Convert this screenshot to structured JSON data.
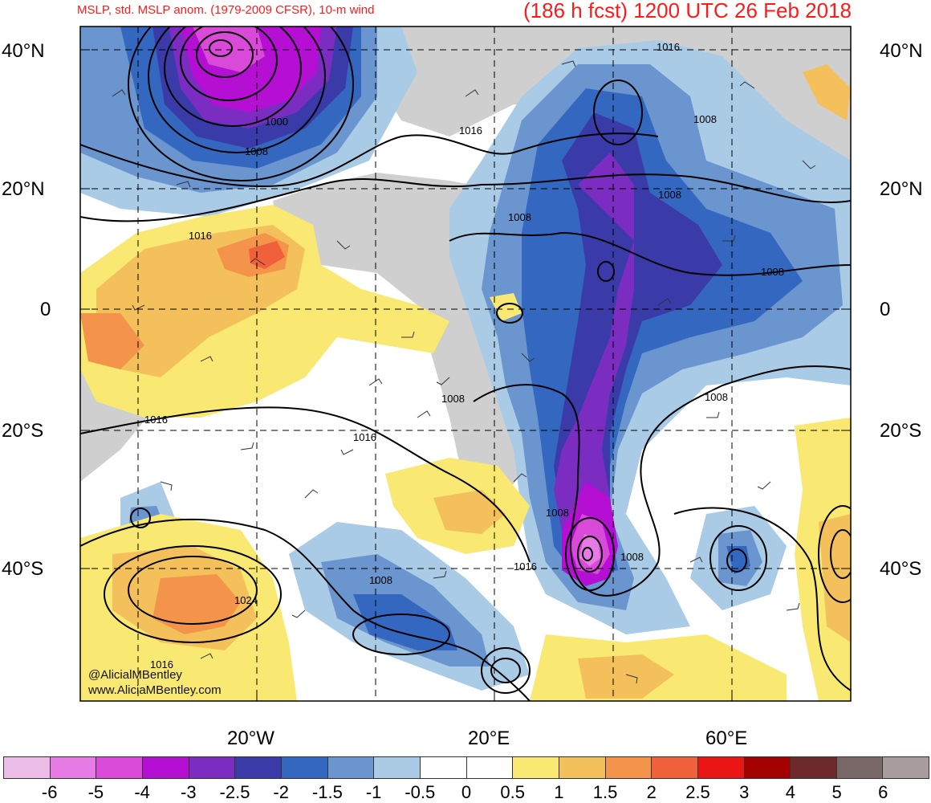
{
  "header": {
    "product": "MSLP, std. MSLP anom. (1979-2009 CFSR), 10-m wind",
    "forecast": "(186 h fcst) 1200 UTC 26 Feb 2018"
  },
  "map": {
    "lat_labels_left": [
      "40°N",
      "20°N",
      "0",
      "20°S",
      "40°S"
    ],
    "lat_labels_right": [
      "40°N",
      "20°N",
      "0",
      "20°S",
      "40°S"
    ],
    "lon_labels": [
      "20°W",
      "20°E",
      "60°E"
    ],
    "isobar_labels": [
      "1000",
      "1008",
      "1016",
      "1016",
      "1008",
      "1008",
      "1008",
      "1016",
      "1008",
      "1016",
      "1016",
      "1008",
      "1008",
      "1016",
      "1008",
      "1008",
      "1024",
      "1016",
      "1008"
    ]
  },
  "credits": {
    "twitter": "@AlicialMBentley",
    "website": "www.AliciaMBentley.com"
  },
  "colorbar": {
    "colors": [
      "#ebbde8",
      "#e67be6",
      "#d94ad9",
      "#b40fd2",
      "#7a2dc0",
      "#3a3aa8",
      "#3468c0",
      "#6a95cf",
      "#a9cbe6",
      "#ffffff",
      "#ffffff",
      "#f9e872",
      "#f4c05c",
      "#f4944a",
      "#f0603a",
      "#ea1515",
      "#a30000",
      "#6e2a2a",
      "#7a6868",
      "#a99c9c"
    ],
    "tick_labels": [
      "-6",
      "-5",
      "-4",
      "-3",
      "-2.5",
      "-2",
      "-1.5",
      "-1",
      "-0.5",
      "0",
      "0.5",
      "1",
      "1.5",
      "2",
      "2.5",
      "3",
      "4",
      "5",
      "6"
    ]
  }
}
